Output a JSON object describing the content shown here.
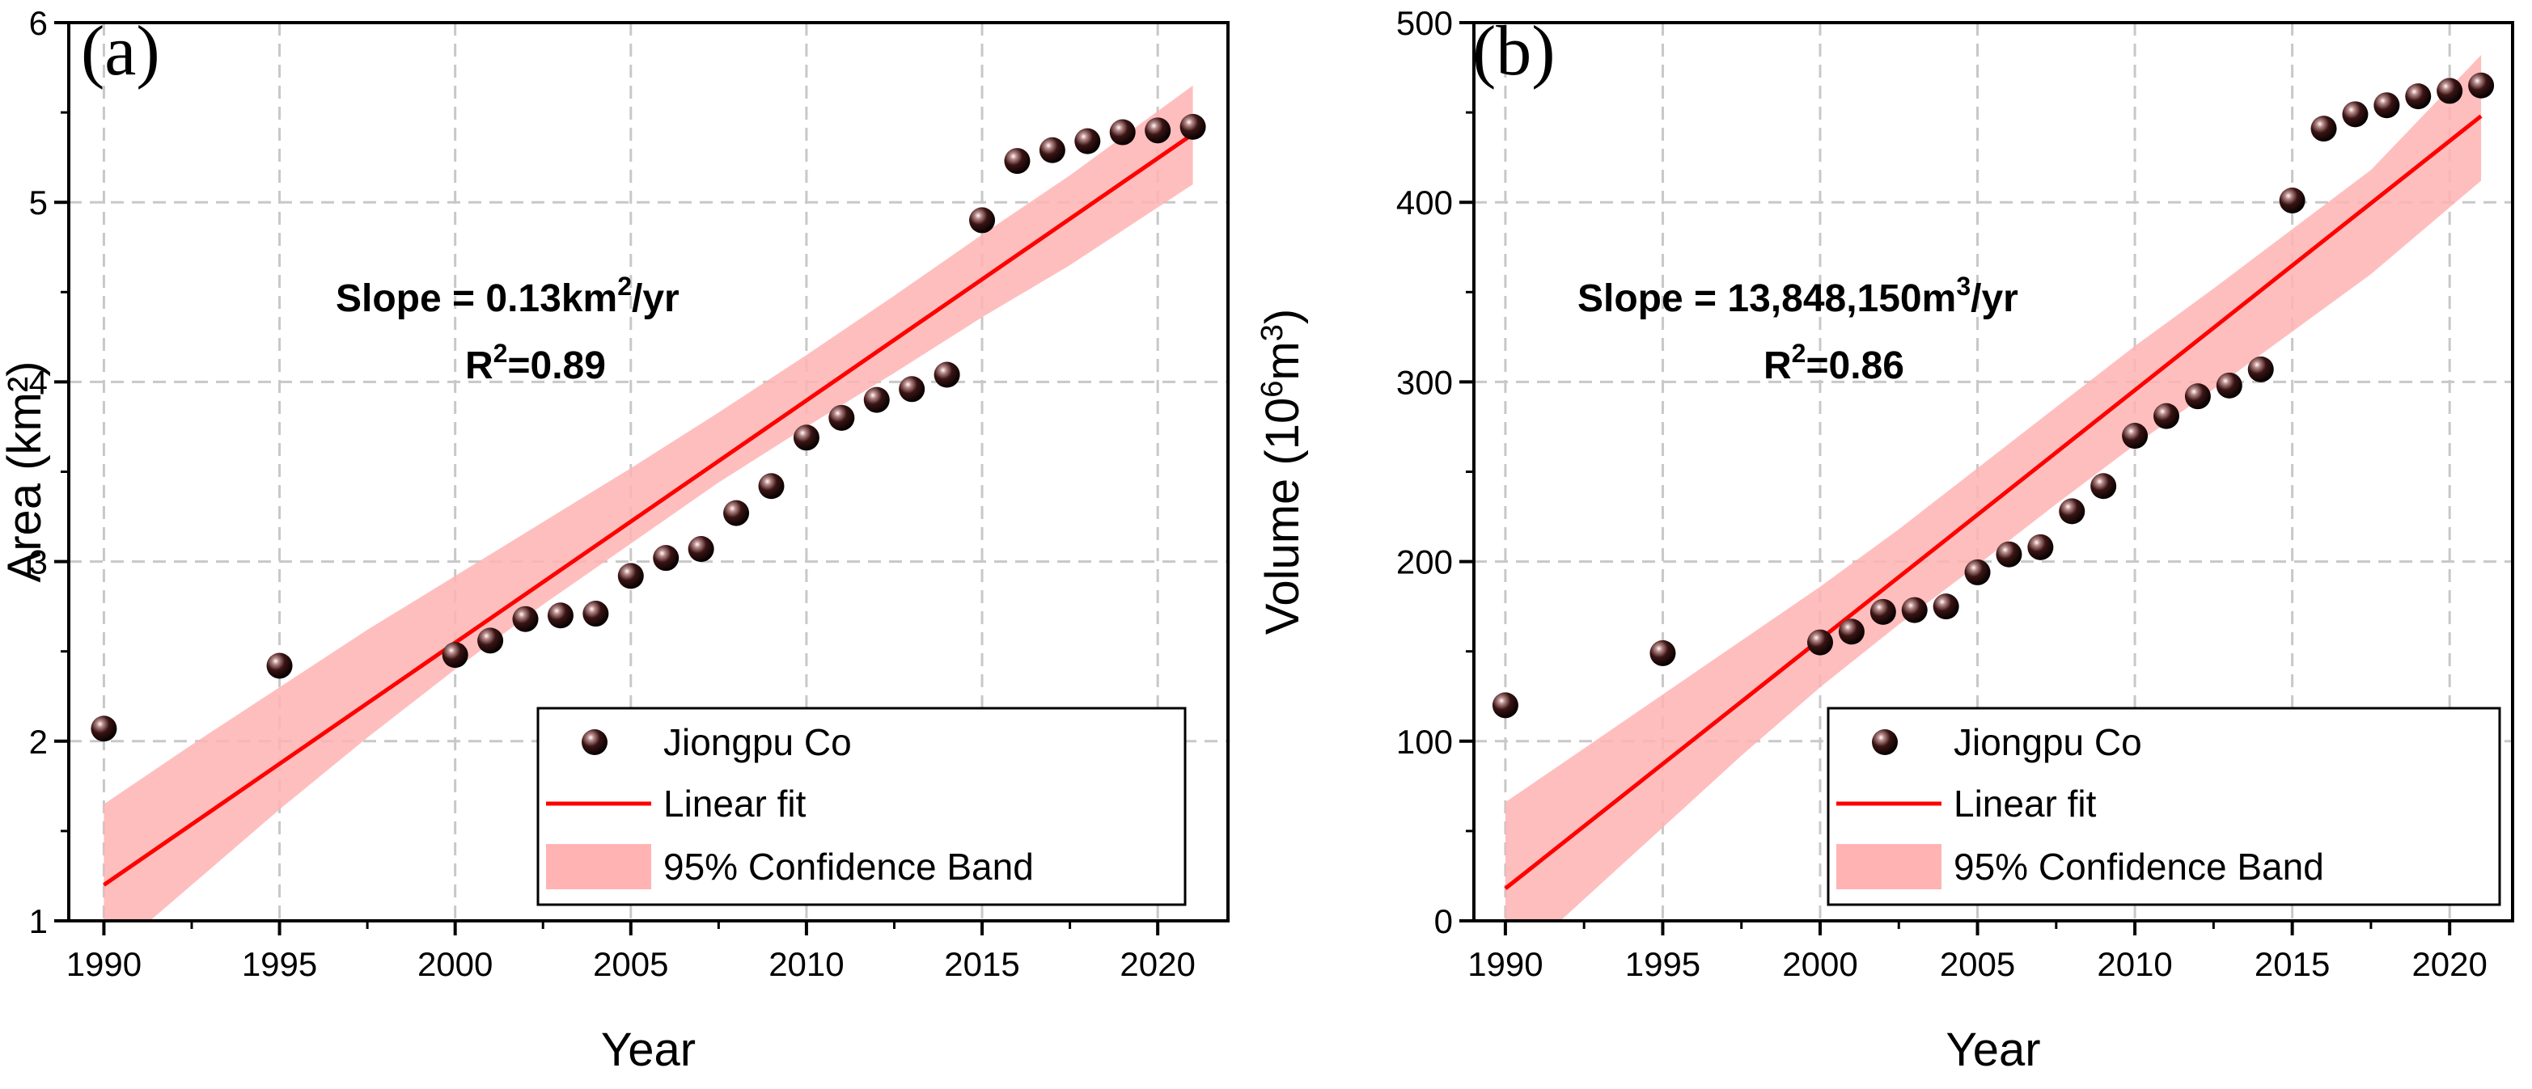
{
  "chart_data": [
    {
      "type": "scatter",
      "panel_label": "(a)",
      "xlabel": "Year",
      "ylabel": "Area (km²)",
      "xlim": [
        1989,
        2022
      ],
      "ylim": [
        1,
        6
      ],
      "xticks": [
        1990,
        1995,
        2000,
        2005,
        2010,
        2015,
        2020
      ],
      "yticks": [
        1,
        2,
        3,
        4,
        5,
        6
      ],
      "grid": true,
      "legend_position": "bottom-right",
      "annotation": {
        "slope_prefix": "Slope = 0.13km",
        "slope_sup": "2",
        "slope_suffix": "/yr",
        "r2_prefix": "R",
        "r2_sup": "2",
        "r2_suffix": "=0.89"
      },
      "legend": {
        "points": "Jiongpu Co",
        "fit": "Linear fit",
        "band": "95% Confidence Band"
      },
      "series": [
        {
          "name": "Jiongpu Co",
          "x": [
            1990,
            1995,
            2000,
            2001,
            2002,
            2003,
            2004,
            2005,
            2006,
            2007,
            2008,
            2009,
            2010,
            2011,
            2012,
            2013,
            2014,
            2015,
            2016,
            2017,
            2018,
            2019,
            2020,
            2021
          ],
          "y": [
            2.07,
            2.42,
            2.48,
            2.56,
            2.68,
            2.7,
            2.71,
            2.92,
            3.02,
            3.07,
            3.27,
            3.42,
            3.69,
            3.8,
            3.9,
            3.96,
            4.04,
            4.9,
            5.23,
            5.29,
            5.34,
            5.39,
            5.4,
            5.42
          ]
        }
      ],
      "fit": {
        "x": [
          1990,
          2021
        ],
        "y": [
          1.2,
          5.38
        ]
      },
      "band": {
        "x": [
          1990,
          1992.5,
          1995,
          1997.5,
          2000,
          2002.5,
          2005,
          2007.5,
          2010,
          2012.5,
          2015,
          2017.5,
          2021
        ],
        "lower": [
          0.78,
          1.2,
          1.62,
          2.02,
          2.4,
          2.76,
          3.1,
          3.44,
          3.75,
          4.05,
          4.36,
          4.65,
          5.1
        ],
        "upper": [
          1.65,
          1.98,
          2.3,
          2.62,
          2.92,
          3.22,
          3.52,
          3.83,
          4.15,
          4.48,
          4.82,
          5.15,
          5.65
        ]
      }
    },
    {
      "type": "scatter",
      "panel_label": "(b)",
      "xlabel": "Year",
      "ylabel_prefix": "Volume (10",
      "ylabel_sup1": "6",
      "ylabel_mid": "m",
      "ylabel_sup2": "3",
      "ylabel_suffix": ")",
      "xlim": [
        1989,
        2022
      ],
      "ylim": [
        0,
        500
      ],
      "xticks": [
        1990,
        1995,
        2000,
        2005,
        2010,
        2015,
        2020
      ],
      "yticks": [
        0,
        100,
        200,
        300,
        400,
        500
      ],
      "grid": true,
      "legend_position": "bottom-right",
      "annotation": {
        "slope_prefix": "Slope = 13,848,150m",
        "slope_sup": "3",
        "slope_suffix": "/yr",
        "r2_prefix": "R",
        "r2_sup": "2",
        "r2_suffix": "=0.86"
      },
      "legend": {
        "points": "Jiongpu Co",
        "fit": "Linear fit",
        "band": "95% Confidence Band"
      },
      "series": [
        {
          "name": "Jiongpu Co",
          "x": [
            1990,
            1995,
            2000,
            2001,
            2002,
            2003,
            2004,
            2005,
            2006,
            2007,
            2008,
            2009,
            2010,
            2011,
            2012,
            2013,
            2014,
            2015,
            2016,
            2017,
            2018,
            2019,
            2020,
            2021
          ],
          "y": [
            120,
            149,
            155,
            161,
            172,
            173,
            175,
            194,
            204,
            208,
            228,
            242,
            270,
            281,
            292,
            298,
            307,
            401,
            441,
            449,
            454,
            459,
            462,
            465
          ]
        }
      ],
      "fit": {
        "x": [
          1990,
          2021
        ],
        "y": [
          18,
          448
        ]
      },
      "band": {
        "x": [
          1990,
          1992.5,
          1995,
          1997.5,
          2000,
          2002.5,
          2005,
          2007.5,
          2010,
          2012.5,
          2015,
          2017.5,
          2021
        ],
        "lower": [
          -28,
          12,
          52,
          92,
          130,
          165,
          198,
          232,
          265,
          296,
          328,
          360,
          412
        ],
        "upper": [
          66,
          96,
          126,
          156,
          186,
          218,
          252,
          286,
          320,
          352,
          385,
          418,
          482
        ]
      }
    }
  ]
}
